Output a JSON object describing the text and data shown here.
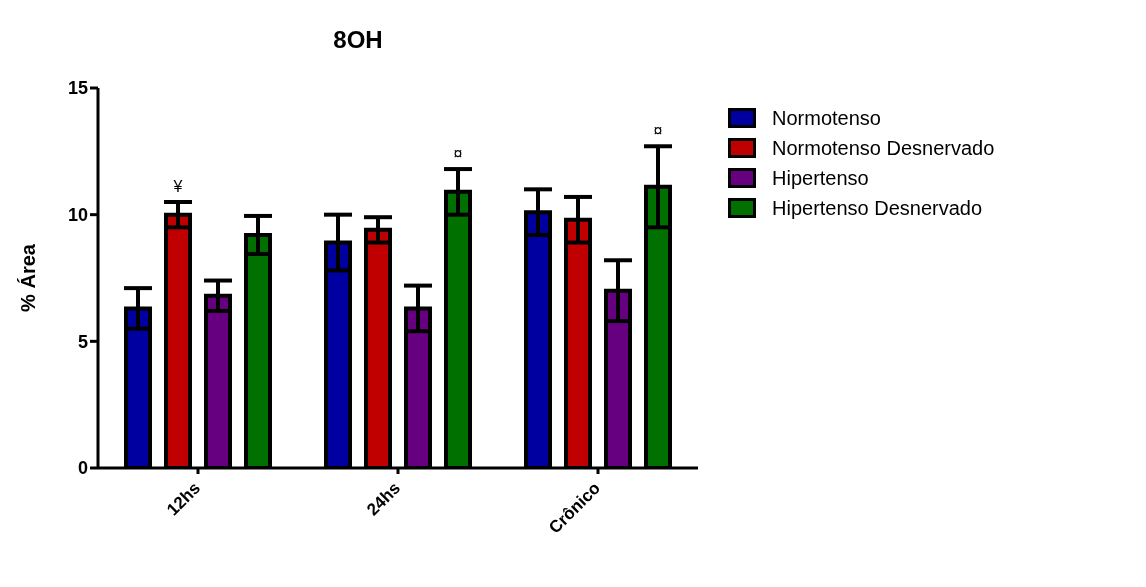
{
  "chart_data": {
    "type": "bar",
    "title": "8OH",
    "ylabel": "% Área",
    "categories": [
      "12hs",
      "24hs",
      "Crônico"
    ],
    "series": [
      {
        "name": "Normotenso",
        "color": "#0000a0",
        "values": [
          6.3,
          8.9,
          10.1
        ],
        "errors": [
          0.8,
          1.1,
          0.9
        ]
      },
      {
        "name": "Normotenso Desnervado",
        "color": "#c00000",
        "values": [
          10.0,
          9.4,
          9.8
        ],
        "errors": [
          0.5,
          0.5,
          0.9
        ],
        "value_labels": [
          "¥",
          null,
          null
        ]
      },
      {
        "name": "Hipertenso",
        "color": "#660080",
        "values": [
          6.8,
          6.3,
          7.0
        ],
        "errors": [
          0.6,
          0.9,
          1.2
        ]
      },
      {
        "name": "Hipertenso Desnervado",
        "color": "#007000",
        "values": [
          9.2,
          10.9,
          11.1
        ],
        "errors": [
          0.75,
          0.9,
          1.6
        ],
        "value_labels": [
          null,
          "¤",
          "¤"
        ]
      }
    ],
    "ylim": [
      0,
      15
    ],
    "yticks": [
      0,
      5,
      10,
      15
    ],
    "legend": "right"
  }
}
